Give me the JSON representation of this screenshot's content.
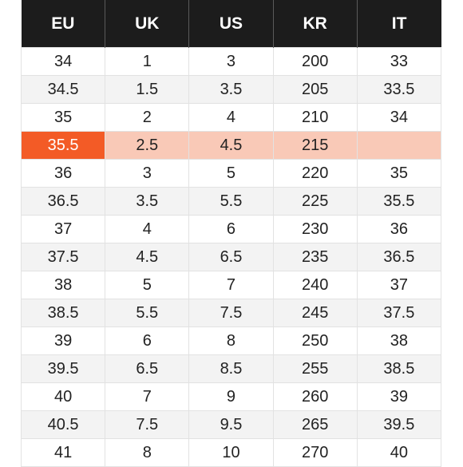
{
  "table": {
    "headers": [
      "EU",
      "UK",
      "US",
      "KR",
      "IT"
    ],
    "highlight_colors": {
      "selected_cell": "#f35b26",
      "selected_row": "#f9c9b7"
    },
    "header_background": "#1c1c1c",
    "selected_row_index": 3,
    "rows": [
      [
        "34",
        "1",
        "3",
        "200",
        "33"
      ],
      [
        "34.5",
        "1.5",
        "3.5",
        "205",
        "33.5"
      ],
      [
        "35",
        "2",
        "4",
        "210",
        "34"
      ],
      [
        "35.5",
        "2.5",
        "4.5",
        "215",
        ""
      ],
      [
        "36",
        "3",
        "5",
        "220",
        "35"
      ],
      [
        "36.5",
        "3.5",
        "5.5",
        "225",
        "35.5"
      ],
      [
        "37",
        "4",
        "6",
        "230",
        "36"
      ],
      [
        "37.5",
        "4.5",
        "6.5",
        "235",
        "36.5"
      ],
      [
        "38",
        "5",
        "7",
        "240",
        "37"
      ],
      [
        "38.5",
        "5.5",
        "7.5",
        "245",
        "37.5"
      ],
      [
        "39",
        "6",
        "8",
        "250",
        "38"
      ],
      [
        "39.5",
        "6.5",
        "8.5",
        "255",
        "38.5"
      ],
      [
        "40",
        "7",
        "9",
        "260",
        "39"
      ],
      [
        "40.5",
        "7.5",
        "9.5",
        "265",
        "39.5"
      ],
      [
        "41",
        "8",
        "10",
        "270",
        "40"
      ]
    ]
  }
}
